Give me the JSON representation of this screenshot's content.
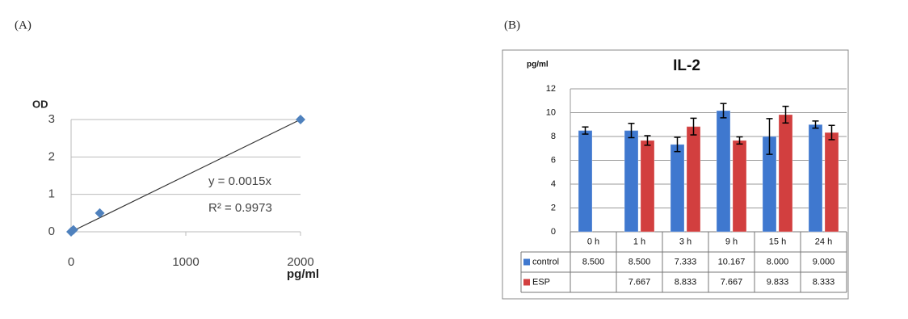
{
  "chart_data": [
    {
      "type": "scatter",
      "panel": "(A)",
      "y_label": "OD",
      "x_label": "pg/ml",
      "x": [
        0,
        20,
        250,
        2000
      ],
      "values": [
        0,
        0.05,
        0.5,
        3
      ],
      "color": "#4f81bd",
      "xlim": [
        0,
        2000
      ],
      "xticks": [
        0,
        1000,
        2000
      ],
      "ylim": [
        0,
        3
      ],
      "yticks": [
        0,
        1,
        2,
        3
      ],
      "grid": true,
      "trendline_slope": 0.0015,
      "annotations": [
        "y = 0.0015x",
        "R² = 0.9973"
      ]
    },
    {
      "type": "bar",
      "panel": "(B)",
      "title": "IL-2",
      "y_label": "pg/ml",
      "categories": [
        "0 h",
        "1 h",
        "3 h",
        "9 h",
        "15 h",
        "24 h"
      ],
      "series": [
        {
          "name": "control",
          "color": "#3f78cf",
          "values": [
            8.5,
            8.5,
            7.333,
            10.167,
            8,
            9
          ],
          "value_labels": [
            "8.500",
            "8.500",
            "7.333",
            "10.167",
            "8.000",
            "9.000"
          ],
          "errors": [
            0.3,
            0.6,
            0.6,
            0.6,
            1.5,
            0.3
          ]
        },
        {
          "name": "ESP",
          "color": "#d23f3f",
          "values": [
            null,
            7.667,
            8.833,
            7.667,
            9.833,
            8.333
          ],
          "value_labels": [
            null,
            "7.667",
            "8.833",
            "7.667",
            "9.833",
            "8.333"
          ],
          "errors": [
            null,
            0.4,
            0.7,
            0.3,
            0.7,
            0.6
          ]
        }
      ],
      "ylim": [
        0,
        12
      ],
      "yticks": [
        0,
        2,
        4,
        6,
        8,
        10,
        12
      ],
      "grid": true
    }
  ]
}
